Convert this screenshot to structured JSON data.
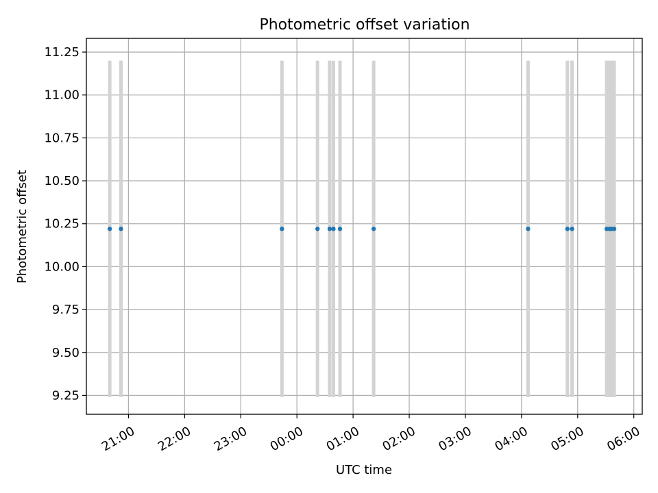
{
  "chart_data": {
    "type": "scatter",
    "title": "Photometric offset variation",
    "xlabel": "UTC time",
    "ylabel": "Photometric offset",
    "x_ticks": [
      "21:00",
      "22:00",
      "23:00",
      "00:00",
      "01:00",
      "02:00",
      "03:00",
      "04:00",
      "05:00",
      "06:00"
    ],
    "x_tick_hours": [
      21,
      22,
      23,
      24,
      25,
      26,
      27,
      28,
      29,
      30
    ],
    "y_ticks": [
      "9.25",
      "9.50",
      "9.75",
      "10.00",
      "10.25",
      "10.50",
      "10.75",
      "11.00",
      "11.25"
    ],
    "xlim": [
      "20:15",
      "06:09"
    ],
    "ylim": [
      9.14,
      11.33
    ],
    "grid": true,
    "point_color": "#1f77b4",
    "errorbar_color": "#d3d3d3",
    "series": [
      {
        "x": [
          "20:40",
          "20:52",
          "23:44",
          "00:22",
          "00:35",
          "00:39",
          "00:46",
          "01:22",
          "04:07",
          "04:49",
          "04:54",
          "05:31",
          "05:34",
          "05:36",
          "05:39"
        ],
        "y": [
          10.22,
          10.22,
          10.22,
          10.22,
          10.22,
          10.22,
          10.22,
          10.22,
          10.22,
          10.22,
          10.22,
          10.22,
          10.22,
          10.22,
          10.22
        ],
        "y_err": [
          0.98,
          0.98,
          0.98,
          0.98,
          0.98,
          0.98,
          0.98,
          0.98,
          0.98,
          0.98,
          0.98,
          0.98,
          0.98,
          0.98,
          0.98
        ]
      }
    ]
  }
}
